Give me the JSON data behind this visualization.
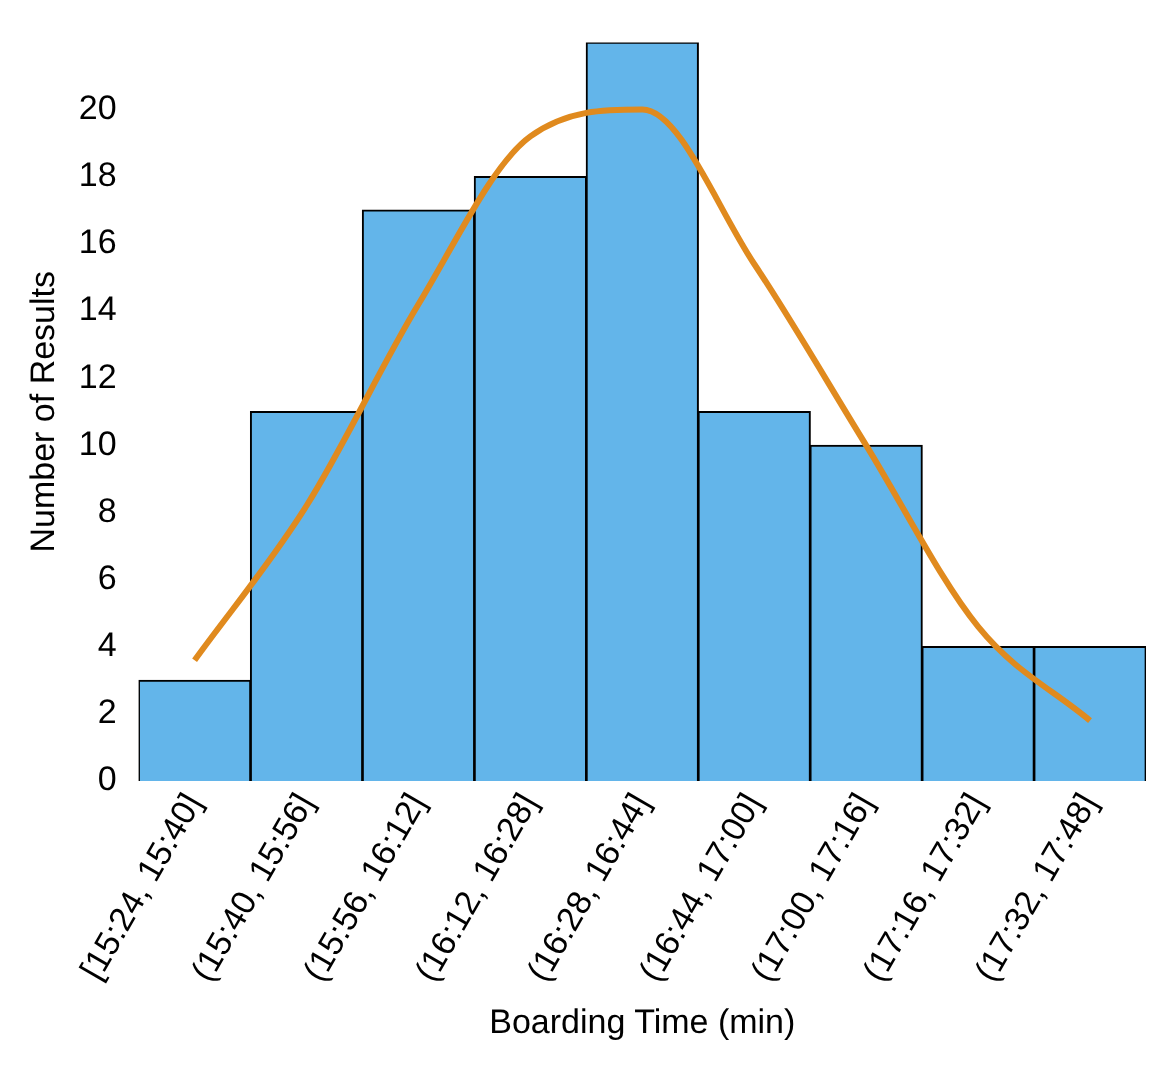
{
  "chart_data": {
    "type": "bar",
    "xlabel": "Boarding Time (min)",
    "ylabel": "Number of Results",
    "categories": [
      "[15:24, 15:40]",
      "(15:40, 15:56]",
      "(15:56, 16:12]",
      "(16:12, 16:28]",
      "(16:28, 16:44]",
      "(16:44, 17:00]",
      "(17:00, 17:16]",
      "(17:16, 17:32]",
      "(17:32, 17:48]"
    ],
    "series": [
      {
        "color": "#63b5ea",
        "values": [
          3,
          11,
          17,
          18,
          22,
          11,
          10,
          4,
          4
        ]
      },
      {
        "type": "line",
        "color": "#e08a1e",
        "values": [
          3.6,
          8.2,
          14.2,
          19.2,
          20,
          15.4,
          10,
          4.6,
          1.8
        ]
      }
    ],
    "ylim": [
      0,
      22
    ],
    "yticks": [
      0,
      2,
      4,
      6,
      8,
      10,
      12,
      14,
      16,
      18,
      20
    ]
  }
}
